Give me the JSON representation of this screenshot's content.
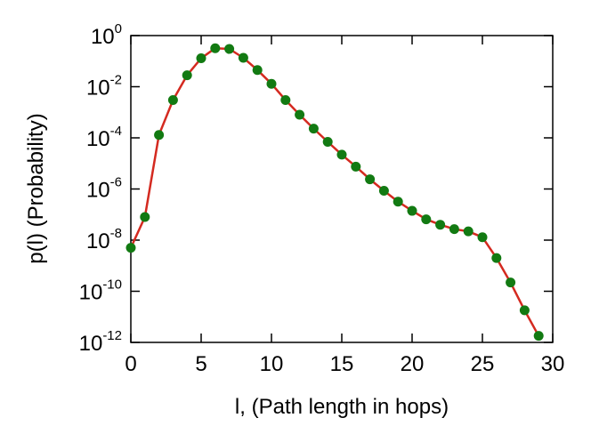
{
  "chart_data": {
    "type": "line",
    "xlabel": "l, (Path length in hops)",
    "ylabel": "p(l) (Probability)",
    "xlim": [
      0,
      30
    ],
    "ylim": [
      1e-12,
      1
    ],
    "yscale": "log",
    "grid": false,
    "x_ticks": [
      0,
      5,
      10,
      15,
      20,
      25,
      30
    ],
    "y_ticks": [
      {
        "base": "10",
        "exp": "0",
        "value": 1
      },
      {
        "base": "10",
        "exp": "-2",
        "value": 0.01
      },
      {
        "base": "10",
        "exp": "-4",
        "value": 0.0001
      },
      {
        "base": "10",
        "exp": "-6",
        "value": 1e-06
      },
      {
        "base": "10",
        "exp": "-8",
        "value": 1e-08
      },
      {
        "base": "10",
        "exp": "-10",
        "value": 1e-10
      },
      {
        "base": "10",
        "exp": "-12",
        "value": 1e-12
      }
    ],
    "series": [
      {
        "line_color": "#d42a20",
        "marker_color": "#127a12",
        "x": [
          0,
          1,
          2,
          3,
          4,
          5,
          6,
          7,
          8,
          9,
          10,
          11,
          12,
          13,
          14,
          15,
          16,
          17,
          18,
          19,
          20,
          21,
          22,
          23,
          24,
          25,
          26,
          27,
          28,
          29
        ],
        "y": [
          5e-09,
          8e-08,
          0.00013,
          0.003,
          0.028,
          0.13,
          0.32,
          0.3,
          0.135,
          0.045,
          0.013,
          0.003,
          0.0008,
          0.00023,
          7e-05,
          2.2e-05,
          7.5e-06,
          2.4e-06,
          8.5e-07,
          3.2e-07,
          1.4e-07,
          6.5e-08,
          4e-08,
          2.7e-08,
          2.2e-08,
          1.3e-08,
          2e-09,
          2.2e-10,
          1.8e-11,
          1.8e-12
        ]
      }
    ]
  }
}
